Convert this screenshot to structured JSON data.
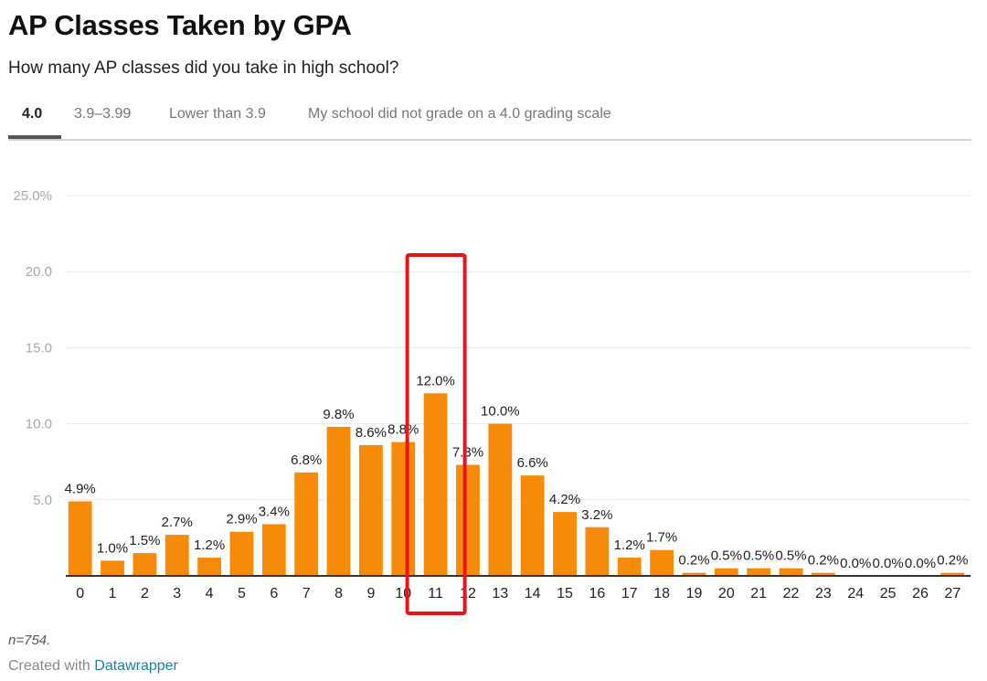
{
  "header": {
    "title": "AP Classes Taken by GPA",
    "subtitle": "How many AP classes did you take in high school?"
  },
  "tabs": [
    {
      "label": "4.0",
      "active": true
    },
    {
      "label": "3.9–3.99",
      "active": false
    },
    {
      "label": "Lower than 3.9",
      "active": false
    },
    {
      "label": "My school did not grade on a 4.0 grading scale",
      "active": false
    }
  ],
  "footer": {
    "notes": "n=754.",
    "created_with": "Created with",
    "datawrapper": "Datawrapper"
  },
  "colors": {
    "bar": "#f68b0a",
    "highlight_box": "#e8141a",
    "gridline": "#e8e8e8",
    "baseline": "#333333",
    "link": "#1d81a2"
  },
  "chart_data": {
    "type": "bar",
    "title": "AP Classes Taken by GPA",
    "subtitle": "How many AP classes did you take in high school?",
    "xlabel": "",
    "ylabel": "",
    "ylim": [
      0,
      25
    ],
    "grid": true,
    "yticks": [
      {
        "value": 5,
        "label": "5.0"
      },
      {
        "value": 10,
        "label": "10.0"
      },
      {
        "value": 15,
        "label": "15.0"
      },
      {
        "value": 20,
        "label": "20.0"
      },
      {
        "value": 25,
        "label": "25.0%"
      }
    ],
    "categories": [
      "0",
      "1",
      "2",
      "3",
      "4",
      "5",
      "6",
      "7",
      "8",
      "9",
      "10",
      "11",
      "12",
      "13",
      "14",
      "15",
      "16",
      "17",
      "18",
      "19",
      "20",
      "21",
      "22",
      "23",
      "24",
      "25",
      "26",
      "27"
    ],
    "values": [
      4.9,
      1.0,
      1.5,
      2.7,
      1.2,
      2.9,
      3.4,
      6.8,
      9.8,
      8.6,
      8.8,
      12.0,
      7.3,
      10.0,
      6.6,
      4.2,
      3.2,
      1.2,
      1.7,
      0.2,
      0.5,
      0.5,
      0.5,
      0.2,
      0.0,
      0.0,
      0.0,
      0.2
    ],
    "value_labels": [
      "4.9%",
      "1.0%",
      "1.5%",
      "2.7%",
      "1.2%",
      "2.9%",
      "3.4%",
      "6.8%",
      "9.8%",
      "8.6%",
      "8.8%",
      "12.0%",
      "7.3%",
      "10.0%",
      "6.6%",
      "4.2%",
      "3.2%",
      "1.2%",
      "1.7%",
      "0.2%",
      "0.5%",
      "0.5%",
      "0.5%",
      "0.2%",
      "0.0%",
      "0.0%",
      "0.0%",
      "0.2%"
    ],
    "highlight_category": "11",
    "series": [
      {
        "name": "4.0",
        "values": [
          4.9,
          1.0,
          1.5,
          2.7,
          1.2,
          2.9,
          3.4,
          6.8,
          9.8,
          8.6,
          8.8,
          12.0,
          7.3,
          10.0,
          6.6,
          4.2,
          3.2,
          1.2,
          1.7,
          0.2,
          0.5,
          0.5,
          0.5,
          0.2,
          0.0,
          0.0,
          0.0,
          0.2
        ]
      }
    ]
  }
}
